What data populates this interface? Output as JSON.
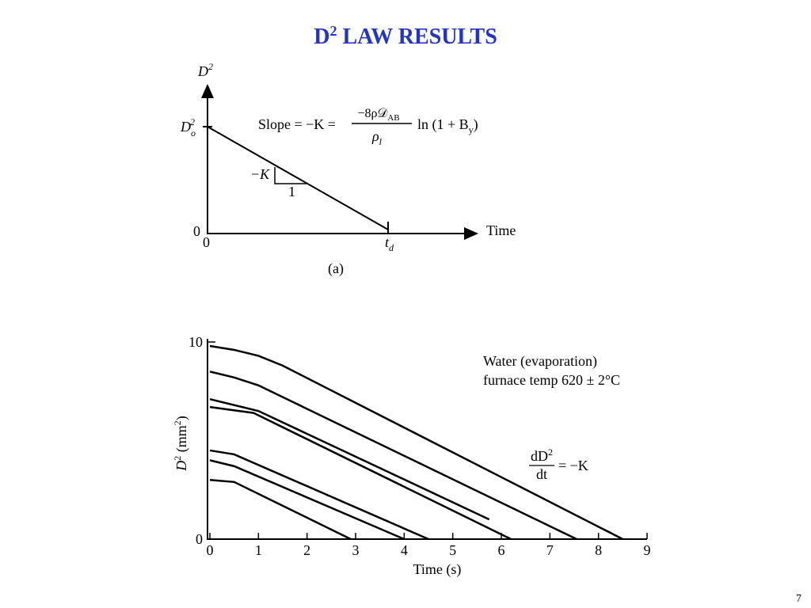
{
  "title": {
    "base": "D",
    "sup": "2",
    "rest": " LAW RESULTS"
  },
  "diagram": {
    "y_label": {
      "base": "D",
      "sup": "2"
    },
    "y_start": {
      "base": "D",
      "sub": "o",
      "sup": "2"
    },
    "slope": {
      "lhs": "Slope = −K =",
      "num": "−8ρ𝒟",
      "num_sub": "AB",
      "den": "ρ",
      "den_sub": "l",
      "rhs": "ln (1 + B",
      "rhs_sub": "y",
      "rhs_end": ")"
    },
    "rise": "−K",
    "run": "1",
    "y_origin": "0",
    "x_origin": "0",
    "x_label": "Time",
    "end": {
      "base": "t",
      "sub": "d"
    },
    "caption": "(a)"
  },
  "chart_data": {
    "type": "line",
    "x_label": "Time (s)",
    "y_label": {
      "base": "D",
      "sup": "2",
      "rest": " (mm",
      "sup2": "2",
      "end": ")"
    },
    "annotations": {
      "note1": "Water (evaporation)",
      "note2": "furnace temp  620 ± 2°C",
      "rate": {
        "num": "dD",
        "num_sup": "2",
        "den": "dt",
        "rhs": "= −K"
      }
    },
    "series": [
      {
        "color": "#000000",
        "x": [
          0,
          0.5,
          1,
          1.5,
          8.5
        ],
        "values": [
          9.8,
          9.6,
          9.3,
          8.8,
          0
        ]
      },
      {
        "color": "#000000",
        "x": [
          0,
          0.5,
          1,
          7.55
        ],
        "values": [
          8.5,
          8.2,
          7.8,
          0
        ]
      },
      {
        "color": "#000000",
        "x": [
          0,
          1,
          5.75
        ],
        "values": [
          7.1,
          6.5,
          1.0
        ]
      },
      {
        "color": "#000000",
        "x": [
          0,
          0.9,
          6.2
        ],
        "values": [
          6.7,
          6.4,
          0
        ]
      },
      {
        "color": "#000000",
        "x": [
          0,
          0.5,
          4.5
        ],
        "values": [
          4.5,
          4.3,
          0
        ]
      },
      {
        "color": "#000000",
        "x": [
          0,
          0.5,
          4.0
        ],
        "values": [
          4.0,
          3.7,
          0
        ]
      },
      {
        "color": "#000000",
        "x": [
          0,
          0.5,
          2.9
        ],
        "values": [
          3.0,
          2.9,
          0
        ]
      }
    ],
    "xlim": [
      0,
      9
    ],
    "xticks": [
      0,
      1,
      2,
      3,
      4,
      5,
      6,
      7,
      8,
      9
    ],
    "ylim": [
      0,
      10
    ],
    "yticks": [
      0,
      10
    ]
  },
  "page_number": "7"
}
